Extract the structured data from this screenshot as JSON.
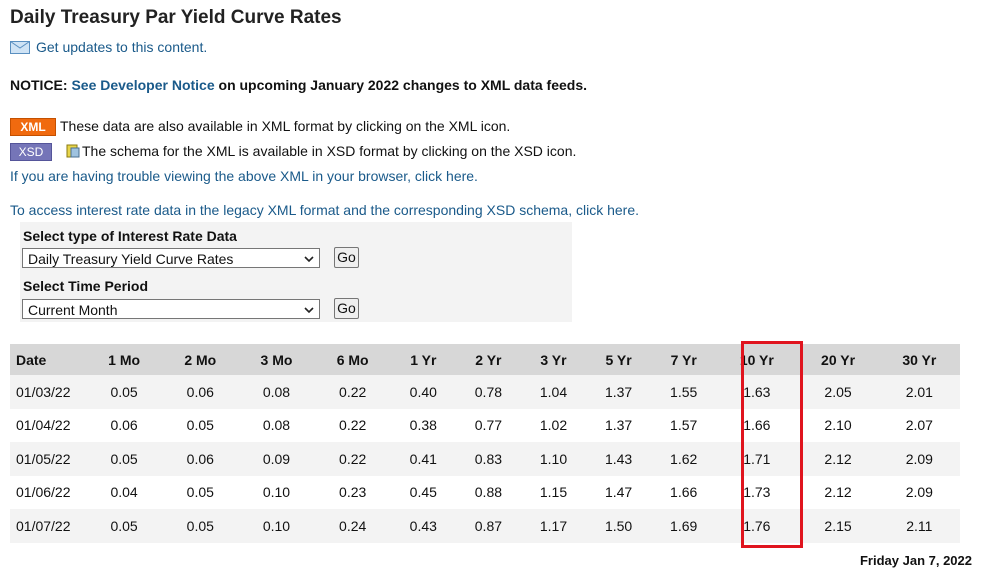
{
  "page": {
    "title": "Daily Treasury Par Yield Curve Rates",
    "updates_link": "Get updates to this content.",
    "notice": {
      "prefix": "NOTICE:",
      "link": "See Developer Notice",
      "suffix": "on upcoming January 2022 changes to XML data feeds."
    },
    "xml_badge": "XML",
    "xml_text": "These data are also available in XML format by clicking on the XML icon.",
    "xsd_badge": "XSD",
    "xsd_text": "The schema for the XML is available in XSD format by clicking on the XSD icon.",
    "trouble_link": "If you are having trouble viewing the above XML in your browser, click here.",
    "legacy_link": "To access interest rate data in the legacy XML format and the corresponding XSD schema, click here."
  },
  "form": {
    "type_label": "Select type of Interest Rate Data",
    "type_value": "Daily Treasury Yield Curve Rates",
    "period_label": "Select Time Period",
    "period_value": "Current Month",
    "go_label": "Go"
  },
  "table": {
    "headers": [
      "Date",
      "1 Mo",
      "2 Mo",
      "3 Mo",
      "6 Mo",
      "1 Yr",
      "2 Yr",
      "3 Yr",
      "5 Yr",
      "7 Yr",
      "10 Yr",
      "20 Yr",
      "30 Yr"
    ],
    "rows": [
      [
        "01/03/22",
        "0.05",
        "0.06",
        "0.08",
        "0.22",
        "0.40",
        "0.78",
        "1.04",
        "1.37",
        "1.55",
        "1.63",
        "2.05",
        "2.01"
      ],
      [
        "01/04/22",
        "0.06",
        "0.05",
        "0.08",
        "0.22",
        "0.38",
        "0.77",
        "1.02",
        "1.37",
        "1.57",
        "1.66",
        "2.10",
        "2.07"
      ],
      [
        "01/05/22",
        "0.05",
        "0.06",
        "0.09",
        "0.22",
        "0.41",
        "0.83",
        "1.10",
        "1.43",
        "1.62",
        "1.71",
        "2.12",
        "2.09"
      ],
      [
        "01/06/22",
        "0.04",
        "0.05",
        "0.10",
        "0.23",
        "0.45",
        "0.88",
        "1.15",
        "1.47",
        "1.66",
        "1.73",
        "2.12",
        "2.09"
      ],
      [
        "01/07/22",
        "0.05",
        "0.05",
        "0.10",
        "0.24",
        "0.43",
        "0.87",
        "1.17",
        "1.50",
        "1.69",
        "1.76",
        "2.15",
        "2.11"
      ]
    ],
    "highlighted_column": "10 Yr"
  },
  "footer": {
    "date": "Friday Jan 7, 2022"
  },
  "colors": {
    "link": "#1a5a8a",
    "xml": "#f06a0f",
    "xsd": "#7575b8",
    "highlight": "#e0141e",
    "header_bg": "#d7d7d7"
  }
}
